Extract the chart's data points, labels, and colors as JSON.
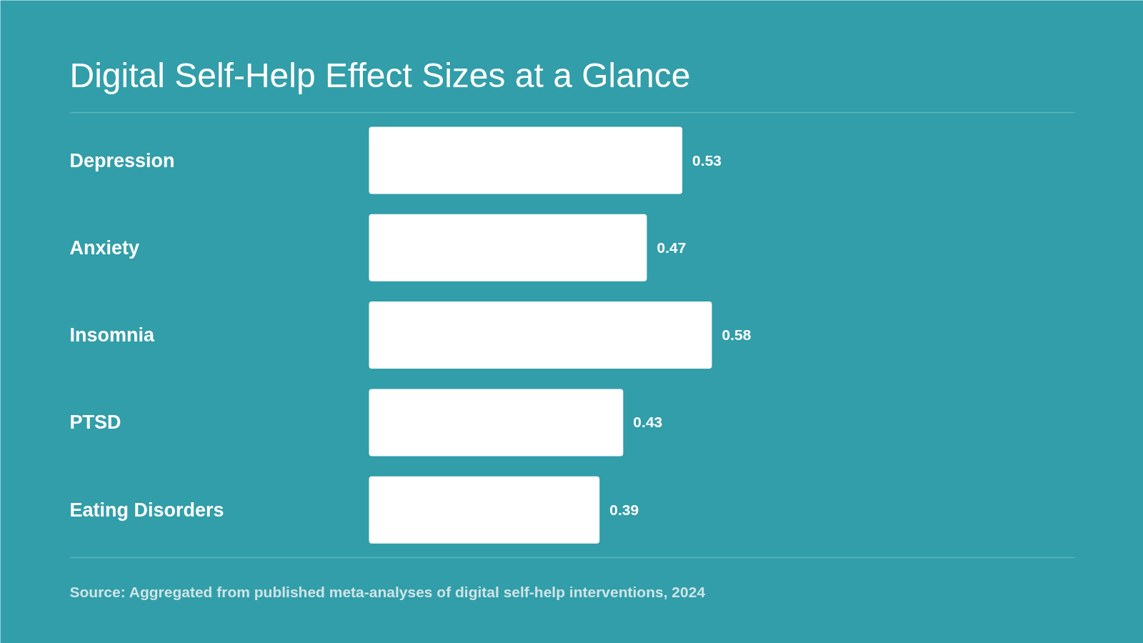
{
  "chart_data": {
    "type": "bar",
    "orientation": "horizontal",
    "title": "Digital Self-Help Effect Sizes at a Glance",
    "categories": [
      "Depression",
      "Anxiety",
      "Insomnia",
      "PTSD",
      "Eating Disorders"
    ],
    "values": [
      0.53,
      0.47,
      0.58,
      0.43,
      0.39
    ],
    "color": "#ffffff",
    "data_labels": true,
    "annotations": [
      "Source: Aggregated from published meta-analyses of digital self-help interventions, 2024"
    ]
  }
}
